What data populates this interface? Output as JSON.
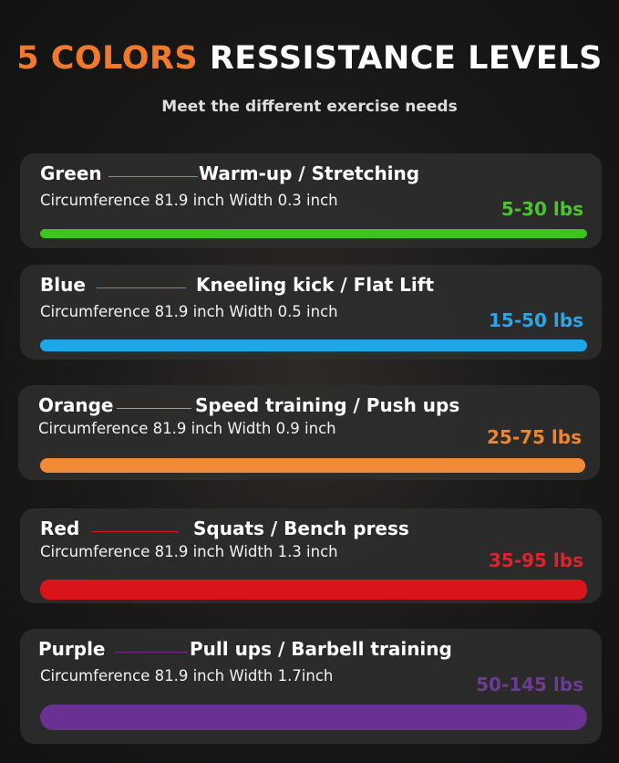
{
  "title": {
    "accent": "5 COLORS",
    "rest": "RESSISTANCE LEVELS"
  },
  "subtitle": "Meet the different exercise needs",
  "levels": [
    {
      "name": "Green",
      "use": "Warm-up / Stretching",
      "spec": "Circumference 81.9 inch Width 0.3 inch",
      "range": "5-30 lbs",
      "color": "#3ec41f",
      "range_color": "#4cc42e"
    },
    {
      "name": "Blue",
      "use": "Kneeling kick / Flat Lift",
      "spec": "Circumference 81.9 inch  Width 0.5 inch",
      "range": "15-50 lbs",
      "color": "#1ea7e8",
      "range_color": "#2aa7e6"
    },
    {
      "name": "Orange",
      "use": "Speed training / Push ups",
      "spec": "Circumference 81.9 inch Width 0.9 inch",
      "range": "25-75 lbs",
      "color": "#f28a35",
      "range_color": "#f0852f"
    },
    {
      "name": "Red",
      "use": "Squats / Bench press",
      "spec": "Circumference 81.9 inch Width 1.3 inch",
      "range": "35-95 lbs",
      "color": "#d9141b",
      "range_color": "#d8262a"
    },
    {
      "name": "Purple",
      "use": "Pull ups / Barbell training",
      "spec": "Circumference 81.9 inch  Width 1.7inch",
      "range": "50-145 lbs",
      "color": "#6a3092",
      "range_color": "#6b3c92"
    }
  ]
}
